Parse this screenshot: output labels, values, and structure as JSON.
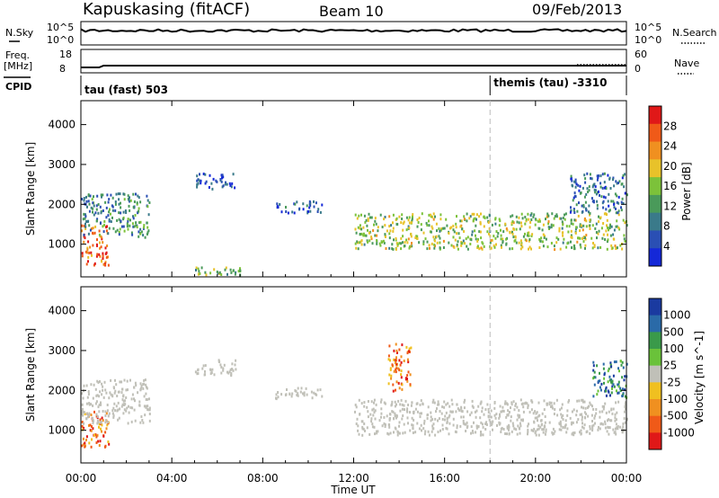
{
  "header": {
    "station": "Kapuskasing (fitACF)",
    "beam": "Beam 10",
    "date": "09/Feb/2013"
  },
  "labels": {
    "nsky": "N.Sky",
    "nsearch": "N.Search",
    "freq": "Freq.",
    "mhz": "[MHz]",
    "nave": "Nave",
    "cpid": "CPID",
    "power_ylabel": "Slant Range [km]",
    "vel_ylabel": "Slant Range [km]",
    "xlabel": "Time UT"
  },
  "noise_ticks_left": [
    "10^5",
    "10^0"
  ],
  "noise_ticks_right": [
    "10^5",
    "10^0"
  ],
  "freq_ticks_left": [
    "18",
    "8"
  ],
  "freq_ticks_right": [
    "60",
    "0"
  ],
  "cpid_segments": [
    {
      "label": "tau (fast) 503",
      "start": 0
    },
    {
      "label": "themis (tau) -3310",
      "start": 18.0
    }
  ],
  "colors": {
    "power_scale": [
      "#1428d8",
      "#2a4fb4",
      "#3a7a8a",
      "#4a9a5a",
      "#7cc23a",
      "#e8c22a",
      "#f09020",
      "#f05a18",
      "#e01818"
    ],
    "velocity_scale": [
      "#1a3aa0",
      "#2a6aa8",
      "#3a9a4a",
      "#6ac23a",
      "#c0c0b8",
      "#f0c020",
      "#f09020",
      "#f05a18",
      "#e01818"
    ],
    "ground_scatter": "#c0c0b8"
  },
  "chart_data": [
    {
      "type": "heatmap",
      "title": "",
      "quantity": "Power",
      "xlabel": "Time UT",
      "ylabel": "Slant Range [km]",
      "x_ticks": [
        "00:00",
        "04:00",
        "08:00",
        "12:00",
        "16:00",
        "20:00",
        "00:00"
      ],
      "xlim": [
        0,
        24
      ],
      "y_ticks": [
        1000,
        2000,
        3000,
        4000
      ],
      "ylim": [
        180,
        4600
      ],
      "colorbar_label": "Power [dB]",
      "colorbar_ticks": [
        4,
        8,
        12,
        16,
        20,
        24,
        28
      ],
      "colorbar_range": [
        0,
        32
      ],
      "scatter_regions": [
        {
          "t_start": 0.0,
          "t_end": 1.2,
          "range_low": 500,
          "range_high": 1500,
          "power": 26
        },
        {
          "t_start": 0.0,
          "t_end": 3.0,
          "range_low": 1200,
          "range_high": 2300,
          "power": 10
        },
        {
          "t_start": 5.0,
          "t_end": 6.8,
          "range_low": 2400,
          "range_high": 2800,
          "power": 4
        },
        {
          "t_start": 8.5,
          "t_end": 10.6,
          "range_low": 1800,
          "range_high": 2100,
          "power": 6
        },
        {
          "t_start": 12.0,
          "t_end": 24.0,
          "range_low": 900,
          "range_high": 1800,
          "power": 16
        },
        {
          "t_start": 21.5,
          "t_end": 24.0,
          "range_low": 1800,
          "range_high": 2800,
          "power": 8
        },
        {
          "t_start": 5.0,
          "t_end": 7.0,
          "range_low": 250,
          "range_high": 450,
          "power": 14
        }
      ]
    },
    {
      "type": "heatmap",
      "title": "",
      "quantity": "Velocity",
      "xlabel": "Time UT",
      "ylabel": "Slant Range [km]",
      "x_ticks": [
        "00:00",
        "04:00",
        "08:00",
        "12:00",
        "16:00",
        "20:00",
        "00:00"
      ],
      "xlim": [
        0,
        24
      ],
      "y_ticks": [
        1000,
        2000,
        3000,
        4000
      ],
      "ylim": [
        180,
        4600
      ],
      "colorbar_label": "Velocity [m s^-1]",
      "colorbar_ticks": [
        "1000",
        "500",
        "100",
        "25",
        "-25",
        "-100",
        "-500",
        "-1000"
      ],
      "scatter_regions": [
        {
          "t_start": 0.0,
          "t_end": 1.2,
          "range_low": 600,
          "range_high": 1500,
          "velocity": -150
        },
        {
          "t_start": 0.0,
          "t_end": 3.0,
          "range_low": 1200,
          "range_high": 2300,
          "velocity": 0
        },
        {
          "t_start": 5.0,
          "t_end": 6.8,
          "range_low": 2400,
          "range_high": 2800,
          "velocity": 0
        },
        {
          "t_start": 8.5,
          "t_end": 10.6,
          "range_low": 1800,
          "range_high": 2100,
          "velocity": 0
        },
        {
          "t_start": 12.0,
          "t_end": 24.0,
          "range_low": 900,
          "range_high": 1800,
          "velocity": 0
        },
        {
          "t_start": 13.5,
          "t_end": 14.5,
          "range_low": 2000,
          "range_high": 3200,
          "velocity": -300
        },
        {
          "t_start": 22.5,
          "t_end": 24.0,
          "range_low": 1800,
          "range_high": 2800,
          "velocity": 300
        }
      ]
    }
  ]
}
